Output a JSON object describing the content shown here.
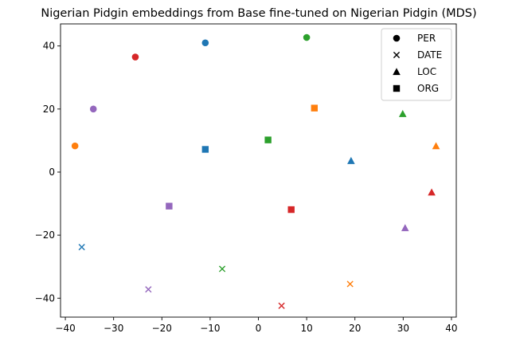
{
  "chart_data": {
    "type": "scatter",
    "title": "Nigerian Pidgin embeddings from Base fine-tuned on Nigerian Pidgin (MDS)",
    "xlabel": "",
    "ylabel": "",
    "xlim": [
      -41,
      41
    ],
    "ylim": [
      -46,
      47
    ],
    "xticks": [
      -40,
      -30,
      -20,
      -10,
      0,
      10,
      20,
      30,
      40
    ],
    "yticks": [
      -40,
      -20,
      0,
      20,
      40
    ],
    "grid": false,
    "legend_position": "top-right",
    "legend": [
      {
        "label": "PER",
        "marker": "circle"
      },
      {
        "label": "DATE",
        "marker": "x"
      },
      {
        "label": "LOC",
        "marker": "triangle"
      },
      {
        "label": "ORG",
        "marker": "square"
      }
    ],
    "points": [
      {
        "x": -11.0,
        "y": 41.0,
        "marker": "circle",
        "color": "#1f77b4"
      },
      {
        "x": 10.0,
        "y": 42.7,
        "marker": "circle",
        "color": "#2ca02c"
      },
      {
        "x": -25.5,
        "y": 36.5,
        "marker": "circle",
        "color": "#d62728"
      },
      {
        "x": -34.2,
        "y": 20.0,
        "marker": "circle",
        "color": "#9467bd"
      },
      {
        "x": -38.0,
        "y": 8.3,
        "marker": "circle",
        "color": "#ff7f0e"
      },
      {
        "x": 11.6,
        "y": 20.3,
        "marker": "square",
        "color": "#ff7f0e"
      },
      {
        "x": 2.0,
        "y": 10.2,
        "marker": "square",
        "color": "#2ca02c"
      },
      {
        "x": -11.0,
        "y": 7.2,
        "marker": "square",
        "color": "#1f77b4"
      },
      {
        "x": -18.5,
        "y": -10.8,
        "marker": "square",
        "color": "#9467bd"
      },
      {
        "x": 6.8,
        "y": -11.9,
        "marker": "square",
        "color": "#d62728"
      },
      {
        "x": 29.9,
        "y": 18.5,
        "marker": "triangle",
        "color": "#2ca02c"
      },
      {
        "x": 36.8,
        "y": 8.3,
        "marker": "triangle",
        "color": "#ff7f0e"
      },
      {
        "x": 19.2,
        "y": 3.6,
        "marker": "triangle",
        "color": "#1f77b4"
      },
      {
        "x": 35.9,
        "y": -6.4,
        "marker": "triangle",
        "color": "#d62728"
      },
      {
        "x": 30.4,
        "y": -17.7,
        "marker": "triangle",
        "color": "#9467bd"
      },
      {
        "x": -36.6,
        "y": -23.8,
        "marker": "x",
        "color": "#1f77b4"
      },
      {
        "x": -7.5,
        "y": -30.7,
        "marker": "x",
        "color": "#2ca02c"
      },
      {
        "x": 19.0,
        "y": -35.5,
        "marker": "x",
        "color": "#ff7f0e"
      },
      {
        "x": -22.8,
        "y": -37.2,
        "marker": "x",
        "color": "#9467bd"
      },
      {
        "x": 4.8,
        "y": -42.4,
        "marker": "x",
        "color": "#d62728"
      }
    ]
  }
}
